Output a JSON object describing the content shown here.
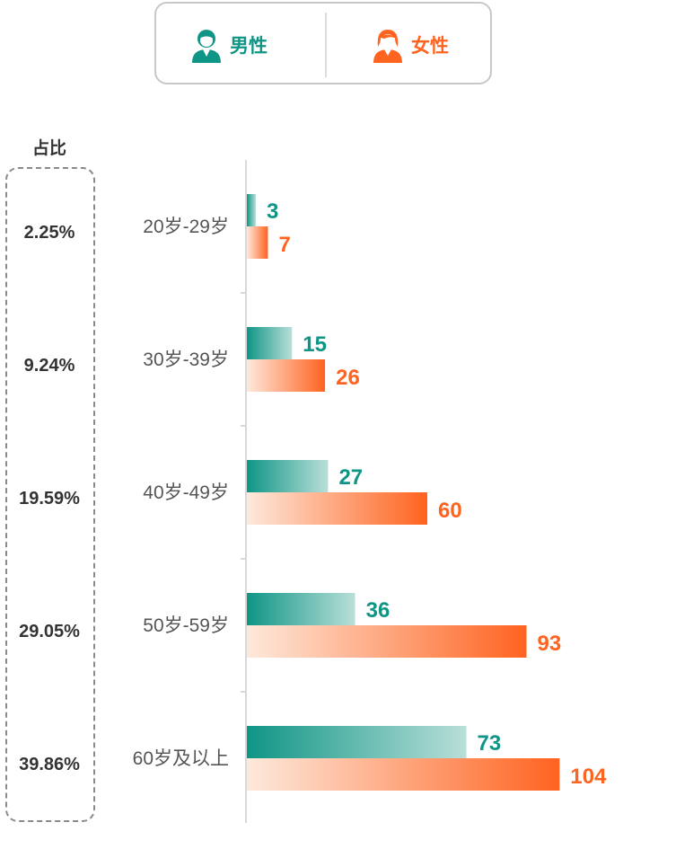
{
  "legend": {
    "male_label": "男性",
    "female_label": "女性",
    "male_icon": "male-person-icon",
    "female_icon": "female-person-icon"
  },
  "ratio": {
    "title": "占比",
    "values": [
      "2.25%",
      "9.24%",
      "19.59%",
      "29.05%",
      "39.86%"
    ]
  },
  "colors": {
    "male": "#0f9585",
    "female": "#ff6320"
  },
  "chart_data": {
    "type": "bar",
    "orientation": "horizontal",
    "categories": [
      "20岁-29岁",
      "30岁-39岁",
      "40岁-49岁",
      "50岁-59岁",
      "60岁及以上"
    ],
    "series": [
      {
        "name": "男性",
        "values": [
          3,
          15,
          27,
          36,
          73
        ]
      },
      {
        "name": "女性",
        "values": [
          7,
          26,
          60,
          93,
          104
        ]
      }
    ],
    "grid": false,
    "legend": "top-center"
  }
}
